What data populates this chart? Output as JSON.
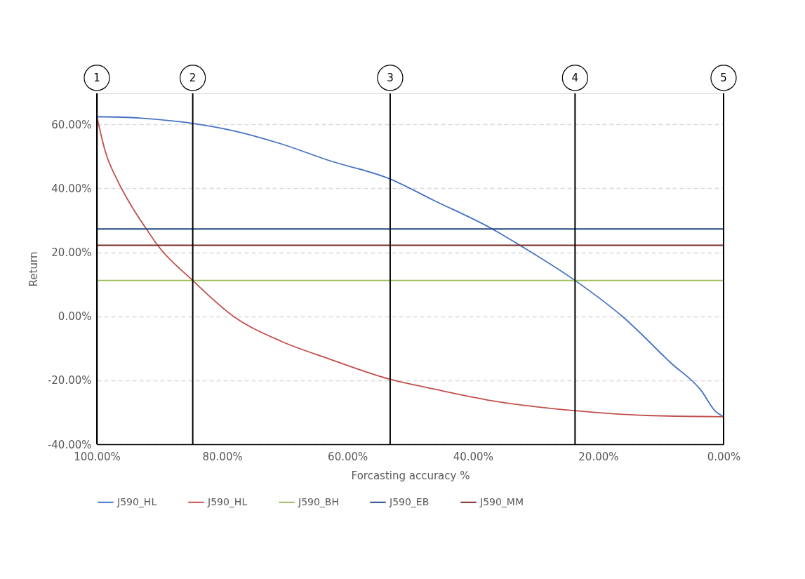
{
  "chart_data": {
    "type": "line",
    "xlabel": "Forcasting accuracy %",
    "ylabel": "Return",
    "xlim": [
      100,
      0
    ],
    "xticks": [
      {
        "value": 100,
        "label": "100.00%"
      },
      {
        "value": 80,
        "label": "80.00%"
      },
      {
        "value": 60,
        "label": "60.00%"
      },
      {
        "value": 40,
        "label": "40.00%"
      },
      {
        "value": 20,
        "label": "20.00%"
      },
      {
        "value": 0,
        "label": "0.00%"
      }
    ],
    "ylim": [
      -40,
      69.7
    ],
    "yticks": [
      {
        "value": -40,
        "label": "-40.00%"
      },
      {
        "value": -20,
        "label": "-20.00%"
      },
      {
        "value": 0,
        "label": "0.00%"
      },
      {
        "value": 20,
        "label": "20.00%"
      },
      {
        "value": 40,
        "label": "40.00%"
      },
      {
        "value": 60,
        "label": "60.00%"
      }
    ],
    "grid": "y",
    "legend": "bottom",
    "line_style": "solid",
    "marker": "none",
    "series": [
      {
        "name": "J590_HL",
        "color": "#4472c4",
        "x": [
          100,
          93.3,
          84.7,
          78.2,
          70.6,
          63.1,
          53.2,
          46.3,
          36.9,
          32.5,
          23.7,
          16.0,
          8.4,
          3.5,
          1.4,
          0
        ],
        "values": [
          62.4,
          62.0,
          60.3,
          58.0,
          53.9,
          48.8,
          42.9,
          36.3,
          27.3,
          22.2,
          11.2,
          -0.3,
          -14.6,
          -23.4,
          -29.5,
          -31.4
        ]
      },
      {
        "name": "J590_HL",
        "color": "#c0504d",
        "x": [
          100,
          98.6,
          96.7,
          94.4,
          92.1,
          90.3,
          84.7,
          78.2,
          70.6,
          63.1,
          53.2,
          46.3,
          36.9,
          23.7,
          12.2,
          0
        ],
        "values": [
          62.4,
          51.2,
          42.4,
          34.2,
          27.3,
          22.2,
          11.2,
          0,
          -7.8,
          -13.2,
          -19.7,
          -22.7,
          -26.4,
          -29.5,
          -31.0,
          -31.4
        ]
      },
      {
        "name": "J590_BH",
        "color": "#9bbb59",
        "x": [
          100,
          0
        ],
        "values": [
          11.2,
          11.2
        ]
      },
      {
        "name": "J590_EB",
        "color": "#1f497d",
        "x": [
          100,
          0
        ],
        "values": [
          27.3,
          27.3
        ]
      },
      {
        "name": "J590_MM",
        "color": "#7b2c2a",
        "x": [
          100,
          0
        ],
        "values": [
          22.2,
          22.2
        ]
      }
    ],
    "ref_lines": [
      {
        "axis": "x",
        "value": 100,
        "color": "#000000",
        "line_style": "solid"
      },
      {
        "axis": "x",
        "value": 84.7,
        "color": "#000000",
        "line_style": "solid"
      },
      {
        "axis": "x",
        "value": 53.2,
        "color": "#000000",
        "line_style": "solid"
      },
      {
        "axis": "x",
        "value": 23.7,
        "color": "#000000",
        "line_style": "solid"
      },
      {
        "axis": "x",
        "value": 0,
        "color": "#000000",
        "line_style": "solid"
      }
    ],
    "annotations": [
      "1",
      "2",
      "3",
      "4",
      "5"
    ]
  }
}
